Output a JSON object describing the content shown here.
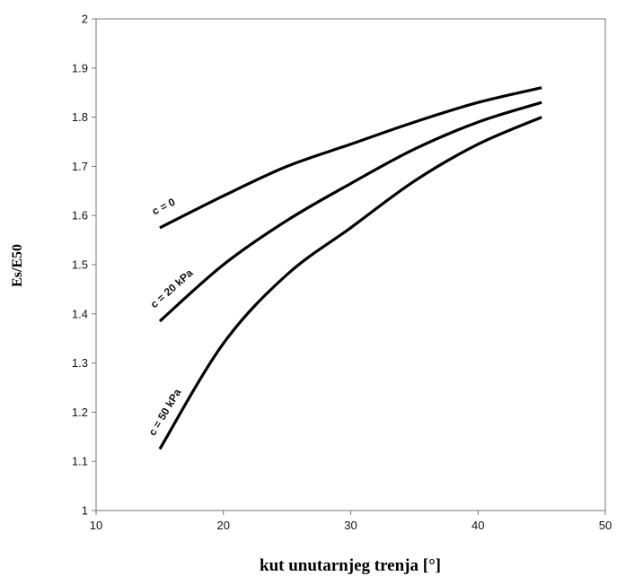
{
  "chart_data": {
    "type": "line",
    "xlabel": "kut unutarnjeg trenja [°]",
    "ylabel": "Es/E50",
    "xlim": [
      10,
      50
    ],
    "ylim": [
      1,
      2
    ],
    "xticks": [
      10,
      20,
      30,
      40,
      50
    ],
    "yticks": [
      1,
      1.1,
      1.2,
      1.3,
      1.4,
      1.5,
      1.6,
      1.7,
      1.8,
      1.9,
      2
    ],
    "grid": false,
    "legend": "none",
    "series": [
      {
        "name": "c = 0",
        "x": [
          15,
          20,
          25,
          30,
          35,
          40,
          45
        ],
        "y": [
          1.575,
          1.64,
          1.7,
          1.745,
          1.79,
          1.83,
          1.86
        ]
      },
      {
        "name": "c = 20 kPa",
        "x": [
          15,
          20,
          25,
          30,
          35,
          40,
          45
        ],
        "y": [
          1.385,
          1.5,
          1.59,
          1.665,
          1.735,
          1.79,
          1.83
        ]
      },
      {
        "name": "c = 50 kPa",
        "x": [
          15,
          20,
          25,
          30,
          35,
          40,
          45
        ],
        "y": [
          1.125,
          1.34,
          1.48,
          1.575,
          1.67,
          1.745,
          1.8
        ]
      }
    ]
  }
}
